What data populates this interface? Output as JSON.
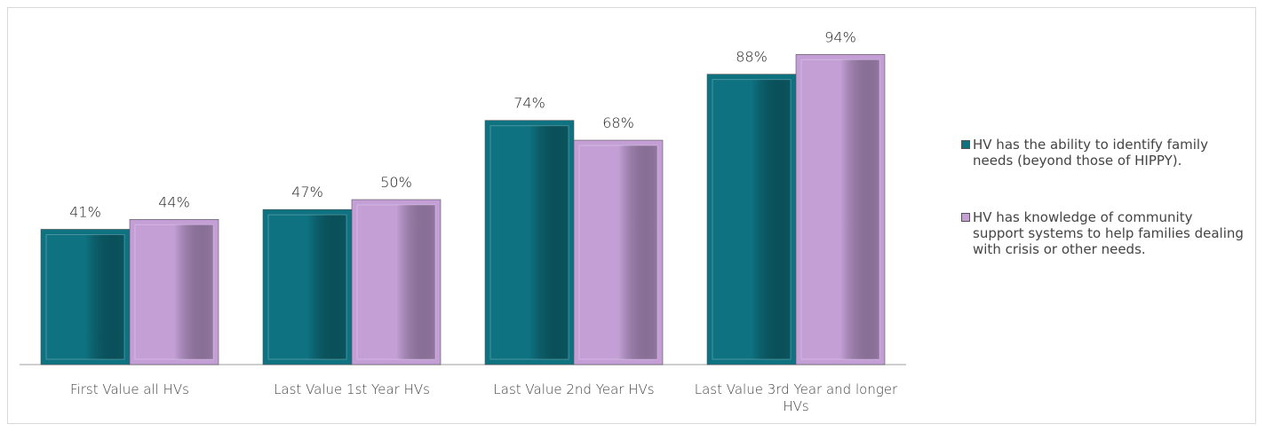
{
  "chart_data": {
    "type": "bar",
    "categories": [
      "First Value all HVs",
      "Last Value 1st Year HVs",
      "Last Value 2nd Year HVs",
      "Last Value 3rd Year and longer HVs"
    ],
    "series": [
      {
        "name": "HV has the ability to identify family needs (beyond those of HIPPY).",
        "color": "#0e7280",
        "values": [
          41,
          47,
          74,
          88
        ],
        "value_labels": [
          "41%",
          "47%",
          "74%",
          "88%"
        ]
      },
      {
        "name": "HV has knowledge of community support systems to help families dealing with crisis or other needs.",
        "color": "#c39fd6",
        "values": [
          44,
          50,
          68,
          94
        ],
        "value_labels": [
          "44%",
          "50%",
          "68%",
          "94%"
        ]
      }
    ]
  }
}
